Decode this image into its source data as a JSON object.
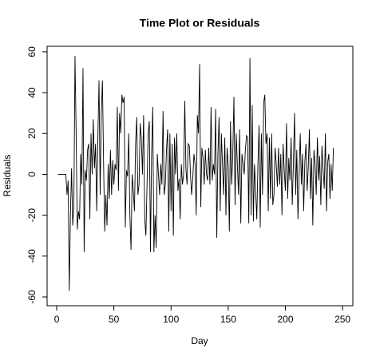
{
  "chart_data": {
    "type": "line",
    "title": "Time Plot or Residuals",
    "x_label": "Day",
    "y_label": "Residuals",
    "x": [
      1,
      2,
      3,
      4,
      5,
      6,
      7,
      8,
      9,
      10,
      11,
      12,
      13,
      14,
      15,
      16,
      17,
      18,
      19,
      20,
      21,
      22,
      23,
      24,
      25,
      26,
      27,
      28,
      29,
      30,
      31,
      32,
      33,
      34,
      35,
      36,
      37,
      38,
      39,
      40,
      41,
      42,
      43,
      44,
      45,
      46,
      47,
      48,
      49,
      50,
      51,
      52,
      53,
      54,
      55,
      56,
      57,
      58,
      59,
      60,
      61,
      62,
      63,
      64,
      65,
      66,
      67,
      68,
      69,
      70,
      71,
      72,
      73,
      74,
      75,
      76,
      77,
      78,
      79,
      80,
      81,
      82,
      83,
      84,
      85,
      86,
      87,
      88,
      89,
      90,
      91,
      92,
      93,
      94,
      95,
      96,
      97,
      98,
      99,
      100,
      101,
      102,
      103,
      104,
      105,
      106,
      107,
      108,
      109,
      110,
      111,
      112,
      113,
      114,
      115,
      116,
      117,
      118,
      119,
      120,
      121,
      122,
      123,
      124,
      125,
      126,
      127,
      128,
      129,
      130,
      131,
      132,
      133,
      134,
      135,
      136,
      137,
      138,
      139,
      140,
      141,
      142,
      143,
      144,
      145,
      146,
      147,
      148,
      149,
      150,
      151,
      152,
      153,
      154,
      155,
      156,
      157,
      158,
      159,
      160,
      161,
      162,
      163,
      164,
      165,
      166,
      167,
      168,
      169,
      170,
      171,
      172,
      173,
      174,
      175,
      176,
      177,
      178,
      179,
      180,
      181,
      182,
      183,
      184,
      185,
      186,
      187,
      188,
      189,
      190,
      191,
      192,
      193,
      194,
      195,
      196,
      197,
      198,
      199,
      200,
      201,
      202,
      203,
      204,
      205,
      206,
      207,
      208,
      209,
      210,
      211,
      212,
      213,
      214,
      215,
      216,
      217,
      218,
      219,
      220,
      221,
      222,
      223,
      224,
      225,
      226,
      227,
      228,
      229,
      230,
      231,
      232,
      233,
      234,
      235,
      236,
      237,
      238,
      239,
      240,
      241,
      242
    ],
    "values": [
      0,
      0,
      0,
      0,
      0,
      0,
      0,
      0,
      -10,
      -3,
      -57,
      -20,
      3,
      -25,
      -15,
      58,
      20,
      -27,
      -18,
      -22,
      10,
      -5,
      52,
      -38,
      2,
      -3,
      12,
      15,
      -22,
      20,
      0,
      27,
      3,
      15,
      -18,
      18,
      46,
      -10,
      30,
      46,
      5,
      -28,
      -10,
      -25,
      5,
      -12,
      12,
      -10,
      7,
      -5,
      5,
      2,
      33,
      -8,
      30,
      20,
      39,
      35,
      38,
      -26,
      2,
      -1,
      20,
      -20,
      -37,
      0,
      -8,
      -18,
      15,
      28,
      -10,
      -5,
      25,
      18,
      0,
      29,
      -22,
      -30,
      -5,
      20,
      26,
      -38,
      10,
      33,
      -38,
      -20,
      -36,
      10,
      0,
      -10,
      5,
      -5,
      31,
      -10,
      -5,
      12,
      22,
      -28,
      20,
      -18,
      15,
      -30,
      18,
      0,
      20,
      -8,
      -2,
      -22,
      5,
      -5,
      0,
      36,
      3,
      -5,
      15,
      14,
      0,
      -10,
      -2,
      10,
      5,
      -20,
      29,
      20,
      54,
      -16,
      13,
      8,
      -5,
      12,
      0,
      -3,
      13,
      -5,
      33,
      -3,
      5,
      0,
      32,
      -31,
      10,
      28,
      -18,
      20,
      5,
      -10,
      18,
      -20,
      13,
      4,
      -28,
      26,
      -5,
      10,
      38,
      -15,
      20,
      5,
      -10,
      22,
      -24,
      10,
      5,
      0,
      12,
      19,
      18,
      -24,
      57,
      -20,
      34,
      -23,
      5,
      -8,
      -22,
      5,
      24,
      -26,
      20,
      -10,
      35,
      39,
      15,
      20,
      -18,
      18,
      -12,
      20,
      -15,
      -10,
      13,
      5,
      -6,
      13,
      -5,
      10,
      -20,
      15,
      2,
      -8,
      25,
      -12,
      8,
      -3,
      18,
      -15,
      5,
      30,
      -10,
      12,
      -22,
      0,
      20,
      -5,
      10,
      -18,
      6,
      15,
      -8,
      3,
      22,
      -12,
      8,
      -25,
      12,
      5,
      -10,
      18,
      -3,
      9,
      -15,
      14,
      2,
      -7,
      20,
      -18,
      6,
      10,
      -12,
      5,
      -8,
      13
    ],
    "color": "#000000",
    "xlim": [
      -8.4,
      259
    ],
    "xticks": [
      0,
      50,
      100,
      150,
      200,
      250
    ],
    "ylim": [
      -64.3,
      62.7
    ],
    "yticks": [
      -60,
      -40,
      -20,
      0,
      20,
      40,
      60
    ]
  }
}
